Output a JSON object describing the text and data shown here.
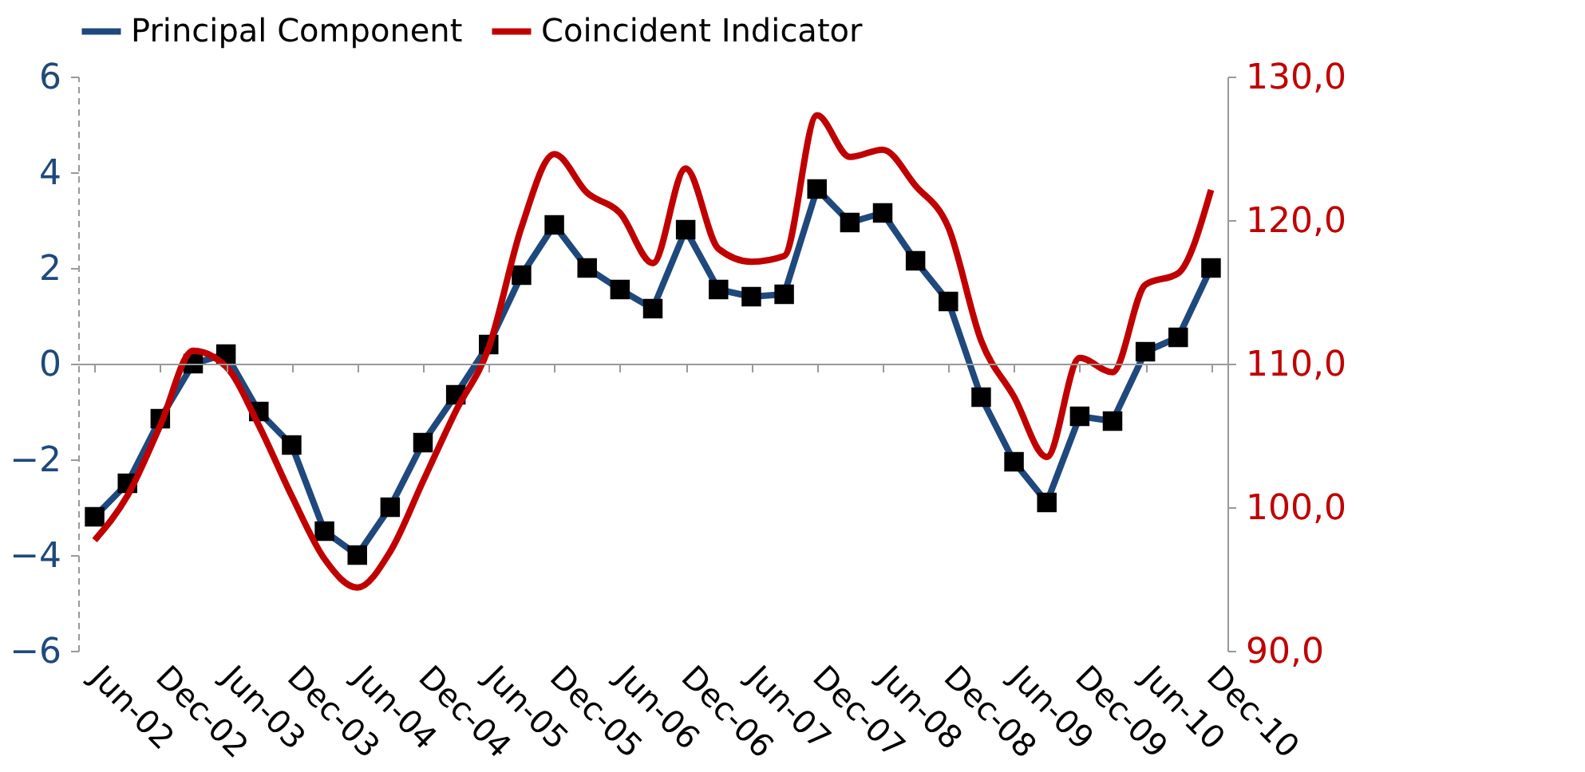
{
  "chart_data": {
    "type": "line",
    "categories": [
      "Jun-02",
      null,
      "Dec-02",
      null,
      "Jun-03",
      null,
      "Dec-03",
      null,
      "Jun-04",
      null,
      "Dec-04",
      null,
      "Jun-05",
      null,
      "Dec-05",
      null,
      "Jun-06",
      null,
      "Dec-06",
      null,
      "Jun-07",
      null,
      "Dec-07",
      null,
      "Jun-08",
      null,
      "Dec-08",
      null,
      "Jun-09",
      null,
      "Dec-09",
      null,
      "Jun-10",
      null,
      "Dec-10"
    ],
    "series": [
      {
        "name": "Principal Component",
        "color": "#1f497d",
        "marker": "square",
        "values": [
          -3.2,
          -2.5,
          -1.15,
          0.0,
          0.2,
          -1.0,
          -1.7,
          -3.5,
          -4.0,
          -3.0,
          -1.65,
          -0.65,
          0.4,
          1.85,
          2.9,
          2.0,
          1.55,
          1.15,
          2.8,
          1.55,
          1.4,
          1.45,
          3.65,
          2.95,
          3.15,
          2.15,
          1.3,
          -0.7,
          -2.05,
          -2.9,
          -1.1,
          -1.2,
          0.25,
          0.55,
          2.0
        ]
      },
      {
        "name": "Coincident Indicator",
        "color": "#c00000",
        "marker": "none",
        "axis": "y2",
        "values": [
          97.7,
          100.8,
          105.7,
          110.9,
          109.8,
          105.7,
          100.8,
          96.4,
          94.4,
          96.9,
          101.8,
          106.7,
          111.1,
          119.5,
          124.6,
          121.9,
          120.5,
          117.0,
          123.6,
          118.0,
          117.1,
          117.5,
          127.3,
          124.4,
          124.9,
          122.4,
          119.5,
          111.6,
          107.7,
          103.5,
          110.4,
          109.4,
          115.5,
          116.3,
          122.1
        ]
      }
    ],
    "ylim": [
      -6,
      6
    ],
    "yticks": [
      -6,
      -4,
      -2,
      0,
      2,
      4,
      6
    ],
    "y2lim": [
      90,
      130
    ],
    "y2ticks": [
      {
        "value": 90,
        "label": "90,0"
      },
      {
        "value": 100,
        "label": "100,0"
      },
      {
        "value": 110,
        "label": "110,0"
      },
      {
        "value": 120,
        "label": "120,0"
      },
      {
        "value": 130,
        "label": "130,0"
      }
    ],
    "legend": "top",
    "line_style": "solid"
  }
}
